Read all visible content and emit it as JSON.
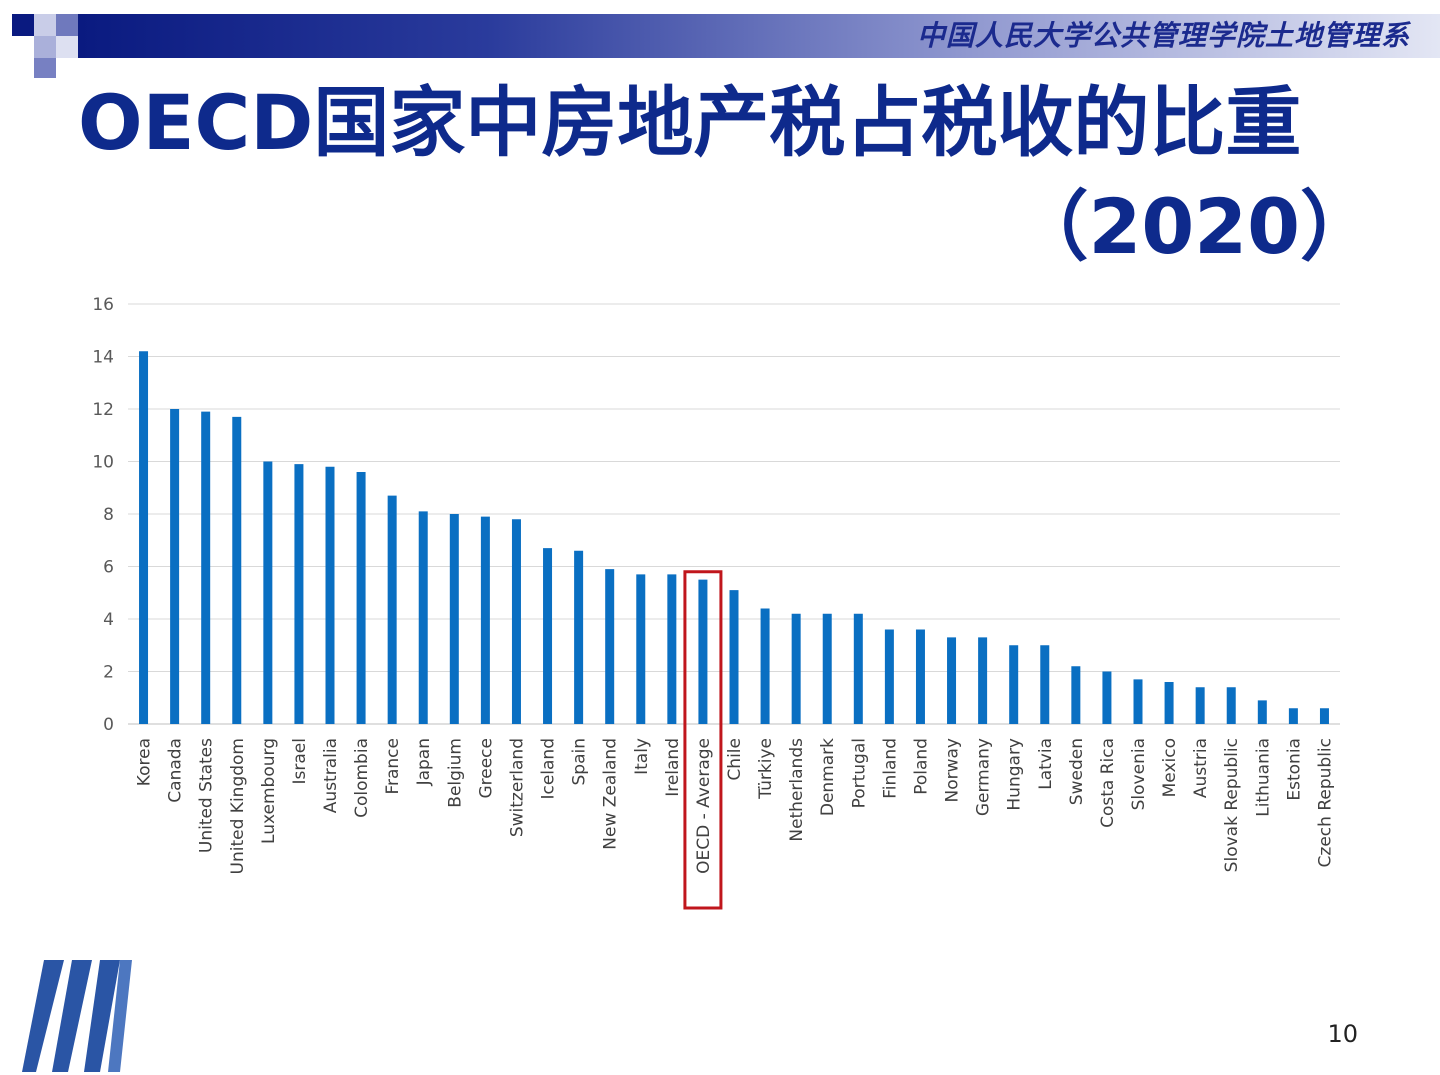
{
  "header": {
    "institution": "中国人民大学公共管理学院土地管理系"
  },
  "slide": {
    "title_line1": "OECD国家中房地产税占税收的比重",
    "title_line2": "（2020）",
    "page_number": "10"
  },
  "colors": {
    "bar": "#0a6fc2",
    "title": "#0e2a8c",
    "highlight_box": "#c0161c",
    "header_dark": "#0a1a80"
  },
  "chart_data": {
    "type": "bar",
    "title": "",
    "xlabel": "",
    "ylabel": "",
    "ylim": [
      0,
      16
    ],
    "yticks": [
      0,
      2,
      4,
      6,
      8,
      10,
      12,
      14,
      16
    ],
    "grid": true,
    "highlight": "OECD - Average",
    "categories": [
      "Korea",
      "Canada",
      "United States",
      "United Kingdom",
      "Luxembourg",
      "Israel",
      "Australia",
      "Colombia",
      "France",
      "Japan",
      "Belgium",
      "Greece",
      "Switzerland",
      "Iceland",
      "Spain",
      "New Zealand",
      "Italy",
      "Ireland",
      "OECD - Average",
      "Chile",
      "Türkiye",
      "Netherlands",
      "Denmark",
      "Portugal",
      "Finland",
      "Poland",
      "Norway",
      "Germany",
      "Hungary",
      "Latvia",
      "Sweden",
      "Costa Rica",
      "Slovenia",
      "Mexico",
      "Austria",
      "Slovak Republic",
      "Lithuania",
      "Estonia",
      "Czech Republic"
    ],
    "values": [
      14.2,
      12.0,
      11.9,
      11.7,
      10.0,
      9.9,
      9.8,
      9.6,
      8.7,
      8.1,
      8.0,
      7.9,
      7.8,
      6.7,
      6.6,
      5.9,
      5.7,
      5.7,
      5.5,
      5.1,
      4.4,
      4.2,
      4.2,
      4.2,
      3.6,
      3.6,
      3.3,
      3.3,
      3.0,
      3.0,
      2.2,
      2.0,
      1.7,
      1.6,
      1.4,
      1.4,
      0.9,
      0.6,
      0.6
    ]
  }
}
